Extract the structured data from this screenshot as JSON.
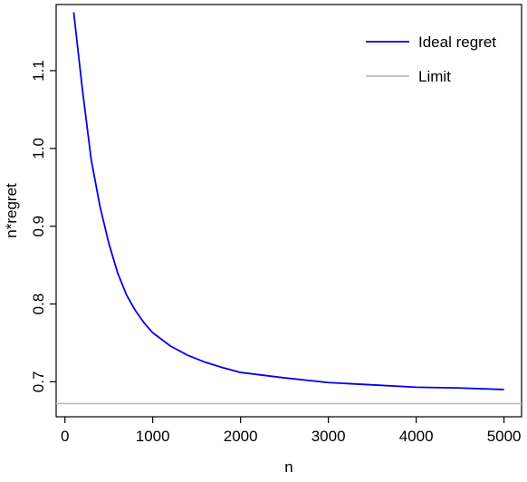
{
  "chart_data": {
    "type": "line",
    "title": "",
    "xlabel": "n",
    "ylabel": "n*regret",
    "xlim": [
      -100,
      5200
    ],
    "ylim": [
      0.655,
      1.185
    ],
    "xticks": [
      0,
      1000,
      2000,
      3000,
      4000,
      5000
    ],
    "yticks": [
      0.7,
      0.8,
      0.9,
      1.0,
      1.1
    ],
    "xtick_labels": [
      "0",
      "1000",
      "2000",
      "3000",
      "4000",
      "5000"
    ],
    "ytick_labels": [
      "0.7",
      "0.8",
      "0.9",
      "1.0",
      "1.1"
    ],
    "grid": false,
    "legend_position": "top-right",
    "series": [
      {
        "name": "Ideal regret",
        "color": "#0000ee",
        "x": [
          100,
          200,
          300,
          400,
          500,
          600,
          700,
          800,
          900,
          1000,
          1200,
          1400,
          1600,
          1800,
          2000,
          2500,
          3000,
          3500,
          4000,
          4500,
          5000
        ],
        "y": [
          1.175,
          1.075,
          0.985,
          0.925,
          0.878,
          0.84,
          0.812,
          0.792,
          0.776,
          0.763,
          0.746,
          0.734,
          0.725,
          0.718,
          0.712,
          0.705,
          0.699,
          0.696,
          0.693,
          0.692,
          0.69
        ]
      },
      {
        "name": "Limit",
        "color": "#bebebe",
        "type": "hline",
        "y": 0.672
      }
    ]
  }
}
